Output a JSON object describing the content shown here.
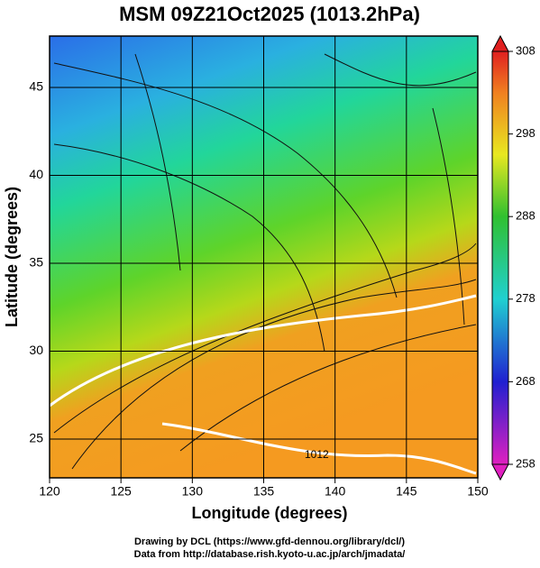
{
  "header": {
    "title": "MSM 09Z21Oct2025 (1013.2hPa)"
  },
  "x_axis": {
    "label": "Longitude (degrees)",
    "ticks": [
      "120",
      "125",
      "130",
      "135",
      "140",
      "145",
      "150"
    ]
  },
  "y_axis": {
    "label": "Latitude  (degrees)",
    "ticks": [
      "45",
      "40",
      "35",
      "30",
      "25"
    ]
  },
  "colorbar": {
    "ticks": [
      "308",
      "298",
      "288",
      "278",
      "268",
      "258"
    ]
  },
  "contour_label": "1012",
  "credits": [
    "Drawing by DCL (https://www.gfd-dennou.org/library/dcl/)",
    "Data from http://database.rish.kyoto-u.ac.jp/arch/jmadata/"
  ]
}
